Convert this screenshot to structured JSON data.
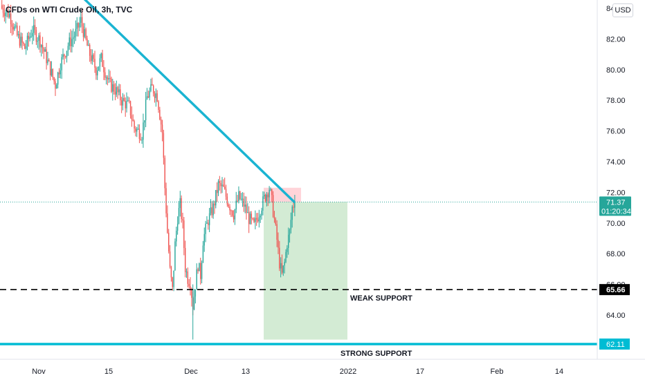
{
  "header": {
    "title": "CFDs on WTI Crude Oil, 3h, TVC",
    "currency_button": "USD"
  },
  "colors": {
    "up": "#26a69a",
    "down": "#ef5350",
    "trendline": "#1ab4d2",
    "support_line": "#000000",
    "strong_support_line": "#00bcd4",
    "target_zone": "#c8e6c9",
    "stop_zone": "#ffcdd2",
    "price_label_bg": "#26a69a",
    "strong_support_label_bg": "#00bcd4",
    "weak_support_label_bg": "#000000"
  },
  "price_axis": {
    "ticks": [
      "84.00",
      "82.00",
      "80.00",
      "78.00",
      "76.00",
      "74.00",
      "72.00",
      "70.00",
      "68.00",
      "66.00",
      "64.00"
    ],
    "current_price": "71.37",
    "countdown": "01:20:34",
    "weak_support_value": "65.66",
    "strong_support_value": "62.11"
  },
  "time_axis": {
    "labels": [
      "Nov",
      "15",
      "Dec",
      "13",
      "2022",
      "17",
      "Feb",
      "14"
    ]
  },
  "annotations": {
    "weak_support": "WEAK SUPPORT",
    "strong_support": "STRONG SUPPORT"
  },
  "chart_data": {
    "type": "candlestick",
    "title": "CFDs on WTI Crude Oil, 3h, TVC",
    "ylim": [
      62,
      84.4
    ],
    "close_path": [
      [
        0,
        84.0
      ],
      [
        6,
        83.6
      ],
      [
        12,
        82.2
      ],
      [
        18,
        81.4
      ],
      [
        24,
        82.6
      ],
      [
        30,
        81.9
      ],
      [
        36,
        80.5
      ],
      [
        42,
        79.0
      ],
      [
        46,
        80.4
      ],
      [
        52,
        81.6
      ],
      [
        58,
        82.4
      ],
      [
        62,
        83.2
      ],
      [
        68,
        81.2
      ],
      [
        74,
        80.0
      ],
      [
        78,
        80.7
      ],
      [
        84,
        79.1
      ],
      [
        90,
        78.6
      ],
      [
        94,
        78.0
      ],
      [
        100,
        77.6
      ],
      [
        104,
        76.2
      ],
      [
        110,
        75.8
      ],
      [
        114,
        78.2
      ],
      [
        118,
        78.8
      ],
      [
        122,
        78.3
      ],
      [
        126,
        75.9
      ],
      [
        128,
        72.3
      ],
      [
        130,
        69.4
      ],
      [
        132,
        66.9
      ],
      [
        134,
        65.6
      ],
      [
        136,
        68.6
      ],
      [
        138,
        70.4
      ],
      [
        140,
        71.2
      ],
      [
        142,
        69.8
      ],
      [
        144,
        67.1
      ],
      [
        146,
        66.4
      ],
      [
        148,
        66.1
      ],
      [
        150,
        64.6
      ],
      [
        152,
        66.0
      ],
      [
        154,
        67.3
      ],
      [
        156,
        66.6
      ],
      [
        158,
        68.9
      ],
      [
        162,
        70.2
      ],
      [
        166,
        71.0
      ],
      [
        170,
        72.5
      ],
      [
        174,
        72.2
      ],
      [
        178,
        71.3
      ],
      [
        182,
        70.6
      ],
      [
        186,
        71.7
      ],
      [
        190,
        71.2
      ],
      [
        194,
        70.3
      ],
      [
        198,
        69.8
      ],
      [
        202,
        70.7
      ],
      [
        206,
        71.6
      ],
      [
        210,
        72.3
      ],
      [
        212,
        71.4
      ],
      [
        214,
        70.2
      ],
      [
        216,
        68.9
      ],
      [
        218,
        67.4
      ],
      [
        220,
        66.6
      ],
      [
        222,
        67.4
      ],
      [
        224,
        68.7
      ],
      [
        226,
        69.4
      ],
      [
        228,
        71.0
      ],
      [
        230,
        71.37
      ]
    ],
    "total_bars": 231,
    "trendline": {
      "from": [
        84.6,
        0
      ],
      "to": [
        71.37,
        230
      ]
    },
    "weak_support": 65.66,
    "strong_support": 62.11,
    "position": {
      "entry": 71.37,
      "target": 62.4,
      "stop": 72.3
    },
    "grid": false
  }
}
